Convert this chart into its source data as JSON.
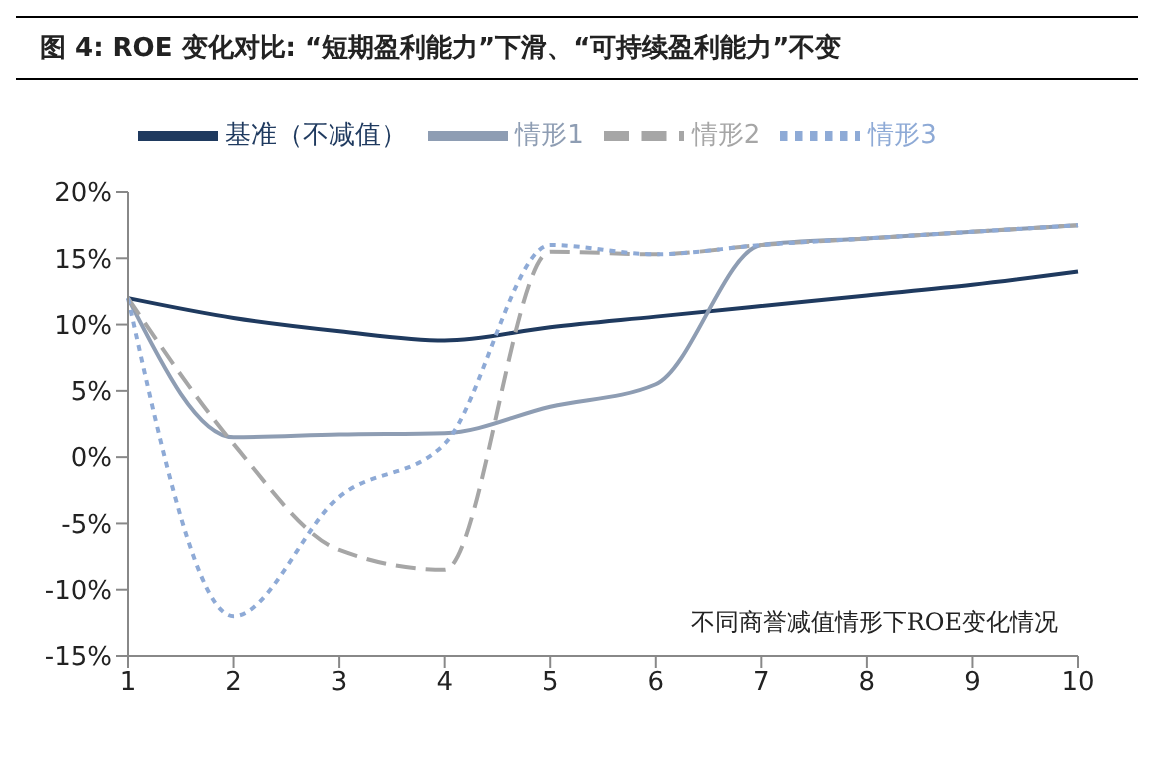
{
  "chart_data": {
    "type": "line",
    "title": "图 4: ROE 变化对比: “短期盈利能力”下滑、“可持续盈利能力”不变",
    "categories": [
      "1",
      "2",
      "3",
      "4",
      "5",
      "6",
      "7",
      "8",
      "9",
      "10"
    ],
    "series": [
      {
        "name": "基准（不减值）",
        "color": "#1f3a5f",
        "line_style": "solid",
        "values": [
          12,
          10.5,
          9.5,
          8.8,
          9.8,
          10.6,
          11.4,
          12.2,
          13,
          14
        ]
      },
      {
        "name": "情形1",
        "color": "#8e9db3",
        "line_style": "solid",
        "values": [
          12,
          1.5,
          1.7,
          1.8,
          3.8,
          5.5,
          16,
          16.5,
          17,
          17.5
        ]
      },
      {
        "name": "情形2",
        "color": "#a6a6a6",
        "line_style": "dashed",
        "values": [
          12,
          1,
          -7,
          -8.5,
          15.5,
          15.3,
          16,
          16.5,
          17,
          17.5
        ]
      },
      {
        "name": "情形3",
        "color": "#8eaad6",
        "line_style": "dotted",
        "values": [
          12,
          -12,
          -3,
          1,
          16,
          15.3,
          16,
          16.5,
          17,
          17.5
        ]
      }
    ],
    "ylim": [
      -15,
      20
    ],
    "yticks": [
      {
        "value": -15,
        "label": "-15%"
      },
      {
        "value": -10,
        "label": "-10%"
      },
      {
        "value": -5,
        "label": "-5%"
      },
      {
        "value": 0,
        "label": "0%"
      },
      {
        "value": 5,
        "label": "5%"
      },
      {
        "value": 10,
        "label": "10%"
      },
      {
        "value": 15,
        "label": "15%"
      },
      {
        "value": 20,
        "label": "20%"
      }
    ],
    "annotations": [
      "不同商誉减值情形下ROE变化情况"
    ],
    "legend": "top",
    "marker": "none",
    "grid": false
  }
}
